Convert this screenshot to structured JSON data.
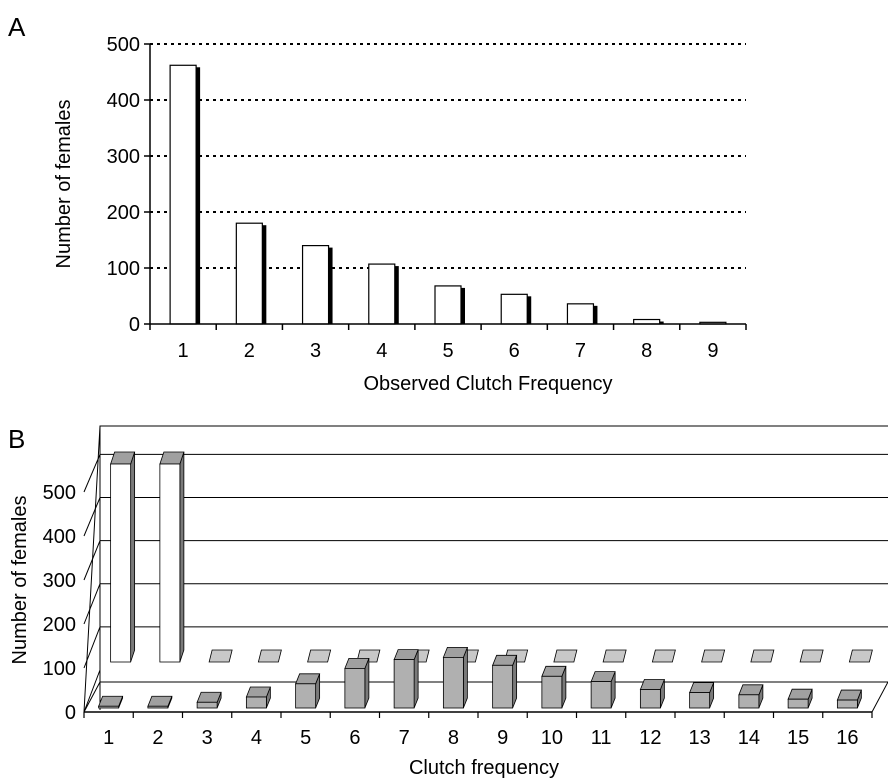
{
  "chart_data": [
    {
      "panel_label": "A",
      "type": "bar",
      "xlabel": "Observed Clutch Frequency",
      "ylabel": "Number of females",
      "ylim": [
        0,
        500
      ],
      "yticks": [
        "0",
        "100",
        "200",
        "300",
        "400",
        "500"
      ],
      "grid": "dotted-horizontal",
      "categories": [
        "1",
        "2",
        "3",
        "4",
        "5",
        "6",
        "7",
        "8",
        "9"
      ],
      "values": [
        462,
        180,
        140,
        107,
        68,
        53,
        36,
        8,
        3
      ]
    },
    {
      "panel_label": "B",
      "type": "bar",
      "style": "3d",
      "xlabel": "Clutch frequency",
      "ylabel": "Number of females",
      "ylim": [
        0,
        500
      ],
      "yticks": [
        "0",
        "100",
        "200",
        "300",
        "400",
        "500"
      ],
      "grid": "horizontal",
      "categories": [
        "1",
        "2",
        "3",
        "4",
        "5",
        "6",
        "7",
        "8",
        "9",
        "10",
        "11",
        "12",
        "13",
        "14",
        "15",
        "16"
      ],
      "series": [
        {
          "color": "#b0b0b0",
          "values": [
            4,
            4,
            13,
            25,
            55,
            90,
            110,
            115,
            97,
            72,
            60,
            42,
            35,
            30,
            20,
            18
          ]
        },
        {
          "color": "#ffffff",
          "values": [
            500,
            500,
            0,
            0,
            0,
            0,
            0,
            0,
            0,
            0,
            0,
            0,
            0,
            0,
            0,
            0
          ]
        }
      ]
    }
  ]
}
